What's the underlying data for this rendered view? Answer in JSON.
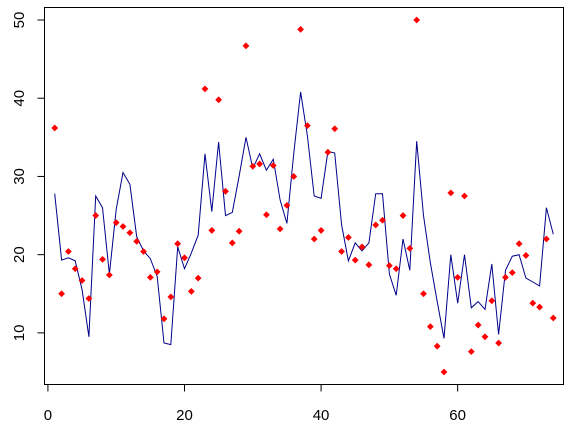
{
  "chart_data": {
    "type": "scatter",
    "title": "",
    "xlabel": "",
    "ylabel": "",
    "xlim": [
      -0.5,
      75.5
    ],
    "ylim": [
      3.4,
      51.6
    ],
    "x_ticks": [
      0,
      20,
      40,
      60
    ],
    "y_ticks": [
      10,
      20,
      30,
      40,
      50
    ],
    "x_tick_labels": [
      "0",
      "20",
      "40",
      "60"
    ],
    "y_tick_labels": [
      "10",
      "20",
      "30",
      "40",
      "50"
    ],
    "grid": false,
    "legend": "none",
    "series": [
      {
        "kind": "line",
        "color": "#00008b",
        "x": [
          1,
          2,
          3,
          4,
          5,
          6,
          7,
          8,
          9,
          10,
          11,
          12,
          13,
          14,
          15,
          16,
          17,
          18,
          19,
          20,
          21,
          22,
          23,
          24,
          25,
          26,
          27,
          28,
          29,
          30,
          31,
          32,
          33,
          34,
          35,
          36,
          37,
          38,
          39,
          40,
          41,
          42,
          43,
          44,
          45,
          46,
          47,
          48,
          49,
          50,
          51,
          52,
          53,
          54,
          55,
          56,
          57,
          58,
          59,
          60,
          61,
          62,
          63,
          64,
          65,
          66,
          67,
          68,
          69,
          70,
          71,
          72,
          73,
          74
        ],
        "y": [
          27.8,
          19.3,
          19.6,
          19.2,
          15.5,
          9.5,
          27.5,
          26.0,
          17.5,
          25.8,
          30.5,
          29.0,
          22.3,
          20.5,
          19.5,
          17.2,
          8.7,
          8.5,
          21.0,
          18.2,
          20.2,
          22.5,
          32.9,
          25.5,
          34.4,
          25.0,
          25.4,
          30.0,
          35.0,
          31.0,
          32.9,
          30.8,
          32.2,
          27.0,
          24.0,
          33.0,
          40.8,
          35.2,
          27.5,
          27.2,
          33.2,
          33.0,
          23.8,
          19.2,
          21.5,
          20.5,
          21.5,
          27.8,
          27.8,
          17.5,
          14.8,
          22.0,
          18.0,
          34.5,
          25.0,
          19.0,
          14.0,
          9.3,
          20.0,
          13.8,
          20.0,
          13.2,
          14.0,
          13.0,
          18.8,
          9.8,
          18.0,
          19.8,
          20.0,
          17.0,
          16.5,
          16.0,
          26.0,
          22.6
        ]
      },
      {
        "kind": "points",
        "color": "#ff0000",
        "x": [
          1,
          2,
          3,
          4,
          5,
          6,
          7,
          8,
          9,
          10,
          11,
          12,
          13,
          14,
          15,
          16,
          17,
          18,
          19,
          20,
          21,
          22,
          23,
          24,
          25,
          26,
          27,
          28,
          29,
          30,
          31,
          32,
          33,
          34,
          35,
          36,
          37,
          38,
          39,
          40,
          41,
          42,
          43,
          44,
          45,
          46,
          47,
          48,
          49,
          50,
          51,
          52,
          53,
          54,
          55,
          56,
          57,
          58,
          59,
          60,
          61,
          62,
          63,
          64,
          65,
          66,
          67,
          68,
          69,
          70,
          71,
          72,
          73,
          74
        ],
        "y": [
          36.2,
          15.0,
          20.4,
          18.2,
          16.7,
          14.4,
          25.0,
          19.4,
          17.4,
          24.1,
          23.6,
          22.8,
          21.7,
          20.4,
          17.1,
          17.8,
          11.8,
          14.6,
          21.4,
          19.6,
          15.3,
          17.0,
          41.2,
          23.1,
          39.8,
          28.1,
          21.5,
          23.0,
          46.7,
          31.3,
          31.6,
          25.1,
          31.4,
          23.3,
          26.3,
          30.0,
          48.8,
          36.5,
          22.0,
          23.1,
          33.1,
          36.1,
          20.4,
          22.2,
          19.3,
          21.0,
          18.7,
          23.8,
          24.4,
          18.6,
          18.2,
          25.0,
          20.8,
          50.0,
          15.0,
          10.8,
          8.3,
          5.0,
          27.9,
          17.1,
          27.5,
          7.6,
          11.0,
          9.5,
          14.1,
          8.7,
          17.1,
          17.7,
          21.4,
          19.9,
          13.8,
          13.3,
          22.0,
          11.9
        ]
      }
    ]
  }
}
